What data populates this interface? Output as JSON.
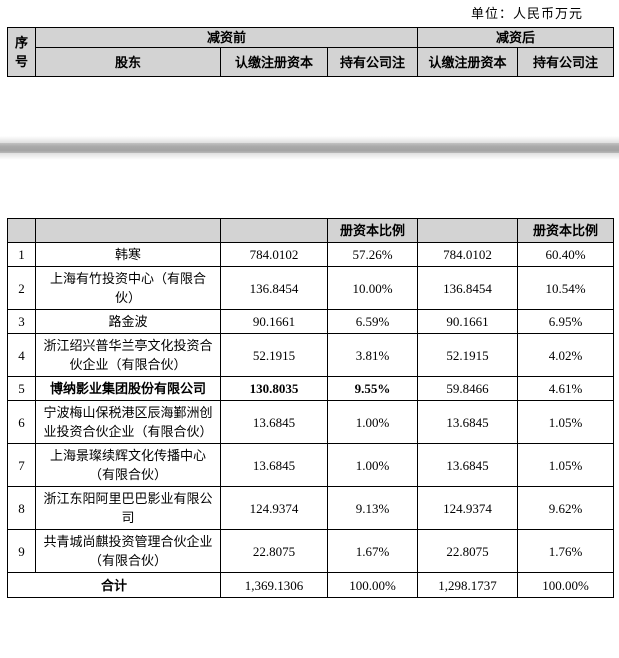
{
  "unit_label": "单位：人民币万元",
  "colors": {
    "header_bg": "#d3d3d3",
    "border": "#000000",
    "pagebreak_band": "#a9a9a9"
  },
  "table": {
    "header": {
      "seq": "序号",
      "group_before": "减资前",
      "group_after": "减资后",
      "shareholder": "股东",
      "subscribed_before": "认缴注册资本",
      "ratio_before": "持有公司注",
      "subscribed_after": "认缴注册资本",
      "ratio_after": "持有公司注"
    },
    "continuation": {
      "ratio_before": "册资本比例",
      "ratio_after": "册资本比例"
    },
    "rows": [
      {
        "no": "1",
        "name": "韩寒",
        "before_capital": "784.0102",
        "before_ratio": "57.26%",
        "after_capital": "784.0102",
        "after_ratio": "60.40%",
        "bold_before": false
      },
      {
        "no": "2",
        "name": "上海有竹投资中心（有限合伙）",
        "before_capital": "136.8454",
        "before_ratio": "10.00%",
        "after_capital": "136.8454",
        "after_ratio": "10.54%",
        "bold_before": false
      },
      {
        "no": "3",
        "name": "路金波",
        "before_capital": "90.1661",
        "before_ratio": "6.59%",
        "after_capital": "90.1661",
        "after_ratio": "6.95%",
        "bold_before": false
      },
      {
        "no": "4",
        "name": "浙江绍兴普华兰亭文化投资合伙企业（有限合伙）",
        "before_capital": "52.1915",
        "before_ratio": "3.81%",
        "after_capital": "52.1915",
        "after_ratio": "4.02%",
        "bold_before": false
      },
      {
        "no": "5",
        "name": "博纳影业集团股份有限公司",
        "before_capital": "130.8035",
        "before_ratio": "9.55%",
        "after_capital": "59.8466",
        "after_ratio": "4.61%",
        "bold_before": true
      },
      {
        "no": "6",
        "name": "宁波梅山保税港区辰海鄞洲创业投资合伙企业（有限合伙）",
        "before_capital": "13.6845",
        "before_ratio": "1.00%",
        "after_capital": "13.6845",
        "after_ratio": "1.05%",
        "bold_before": false
      },
      {
        "no": "7",
        "name": "上海景璨续辉文化传播中心（有限合伙）",
        "before_capital": "13.6845",
        "before_ratio": "1.00%",
        "after_capital": "13.6845",
        "after_ratio": "1.05%",
        "bold_before": false
      },
      {
        "no": "8",
        "name": "浙江东阳阿里巴巴影业有限公司",
        "before_capital": "124.9374",
        "before_ratio": "9.13%",
        "after_capital": "124.9374",
        "after_ratio": "9.62%",
        "bold_before": false
      },
      {
        "no": "9",
        "name": "共青城尚麒投资管理合伙企业（有限合伙）",
        "before_capital": "22.8075",
        "before_ratio": "1.67%",
        "after_capital": "22.8075",
        "after_ratio": "1.76%",
        "bold_before": false
      }
    ],
    "total": {
      "label": "合计",
      "before_capital": "1,369.1306",
      "before_ratio": "100.00%",
      "after_capital": "1,298.1737",
      "after_ratio": "100.00%"
    }
  }
}
